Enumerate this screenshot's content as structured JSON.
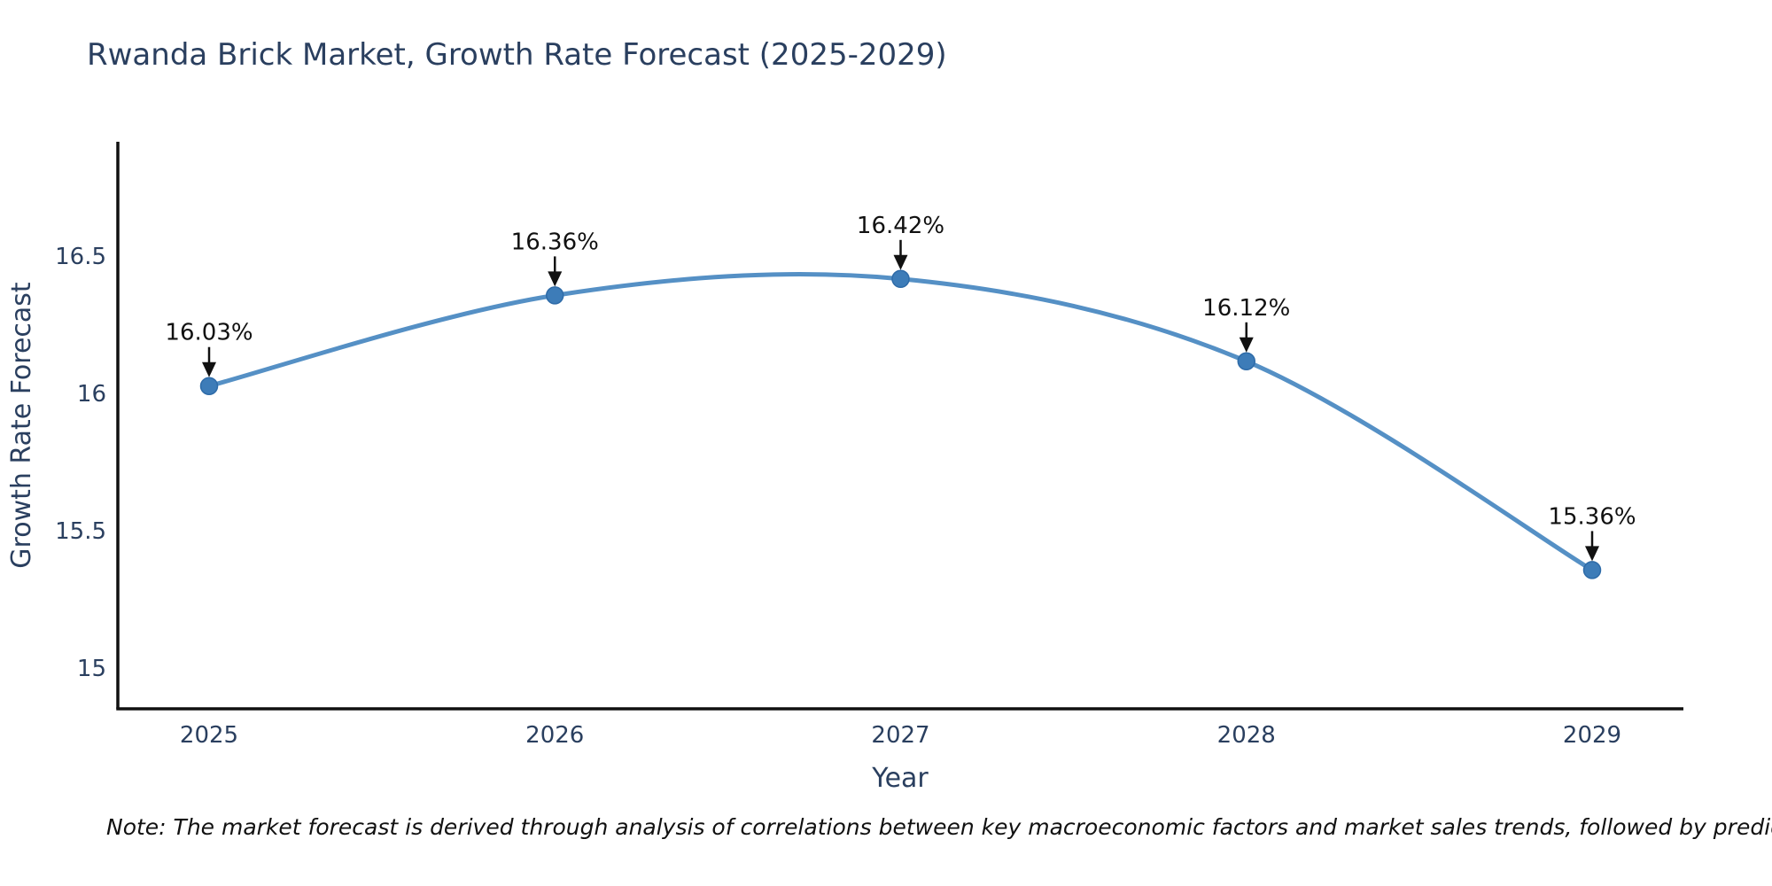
{
  "title": "Rwanda Brick Market, Growth Rate Forecast (2025-2029)",
  "note": "Note: The market forecast is derived through analysis of correlations between key macroeconomic factors and market sales trends, followed by predictive modeling to project future sal",
  "chart_data": {
    "type": "line",
    "title": "Rwanda Brick Market, Growth Rate Forecast (2025-2029)",
    "xlabel": "Year",
    "ylabel": "Growth Rate Forecast",
    "x": [
      2025,
      2026,
      2027,
      2028,
      2029
    ],
    "series": [
      {
        "name": "Growth Rate Forecast",
        "values": [
          16.03,
          16.36,
          16.42,
          16.12,
          15.36
        ]
      }
    ],
    "point_labels": [
      "16.03%",
      "16.36%",
      "16.42%",
      "16.12%",
      "15.36%"
    ],
    "xtick_labels": [
      "2025",
      "2026",
      "2027",
      "2028",
      "2029"
    ],
    "yticks": [
      15,
      15.5,
      16,
      16.5
    ],
    "ytick_labels": [
      "15",
      "15.5",
      "16",
      "16.5"
    ],
    "ylim": [
      14.85,
      16.93
    ],
    "line_shape": "spline",
    "grid": false,
    "legend_visible": false,
    "annotation_arrows": true,
    "colors": {
      "line": "#5590c5",
      "marker": "#3d7cb8",
      "marker_edge": "#2e6ba8",
      "axis": "#111111",
      "tick_text": "#2a3f5f",
      "annotation_text": "#111111",
      "background": "#ffffff"
    }
  }
}
